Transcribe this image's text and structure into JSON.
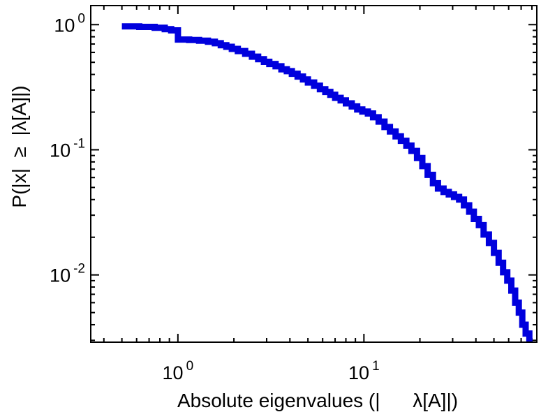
{
  "figure": {
    "background": "#ffffff",
    "border_color": "#000000"
  },
  "chart_data": {
    "type": "line",
    "subtype": "step-ccdf",
    "title": "",
    "xlabel": "Absolute eigenvalues (|      λ[A]|)",
    "ylabel": "P(|x|  ≥  |λ[A]|)",
    "x_scale": "log",
    "y_scale": "log",
    "xlim": [
      0.34,
      85
    ],
    "ylim": [
      0.0029,
      1.42
    ],
    "grid": false,
    "legend": null,
    "line_color": "#0000dd",
    "line_width": 9,
    "x_major_ticks": [
      {
        "value": 1,
        "base": "10",
        "exp": "0"
      },
      {
        "value": 10,
        "base": "10",
        "exp": "1"
      }
    ],
    "y_major_ticks": [
      {
        "value": 1,
        "base": "10",
        "exp": "0"
      },
      {
        "value": 0.1,
        "base": "10",
        "exp": "-1"
      },
      {
        "value": 0.01,
        "base": "10",
        "exp": "-2"
      }
    ],
    "points": [
      [
        0.5,
        0.97
      ],
      [
        0.62,
        0.96
      ],
      [
        0.75,
        0.945
      ],
      [
        0.85,
        0.92
      ],
      [
        0.92,
        0.9
      ],
      [
        1.0,
        0.76
      ],
      [
        1.15,
        0.755
      ],
      [
        1.3,
        0.745
      ],
      [
        1.45,
        0.73
      ],
      [
        1.58,
        0.71
      ],
      [
        1.7,
        0.685
      ],
      [
        1.82,
        0.665
      ],
      [
        1.95,
        0.64
      ],
      [
        2.1,
        0.615
      ],
      [
        2.3,
        0.585
      ],
      [
        2.5,
        0.555
      ],
      [
        2.7,
        0.53
      ],
      [
        2.9,
        0.505
      ],
      [
        3.1,
        0.485
      ],
      [
        3.35,
        0.465
      ],
      [
        3.6,
        0.44
      ],
      [
        3.85,
        0.425
      ],
      [
        4.1,
        0.405
      ],
      [
        4.4,
        0.385
      ],
      [
        4.7,
        0.365
      ],
      [
        5.0,
        0.345
      ],
      [
        5.4,
        0.325
      ],
      [
        5.8,
        0.305
      ],
      [
        6.2,
        0.29
      ],
      [
        6.6,
        0.275
      ],
      [
        7.0,
        0.26
      ],
      [
        7.5,
        0.248
      ],
      [
        8.0,
        0.235
      ],
      [
        8.6,
        0.222
      ],
      [
        9.2,
        0.21
      ],
      [
        9.8,
        0.202
      ],
      [
        10.5,
        0.195
      ],
      [
        11.2,
        0.182
      ],
      [
        12.0,
        0.168
      ],
      [
        12.9,
        0.152
      ],
      [
        13.8,
        0.14
      ],
      [
        14.8,
        0.128
      ],
      [
        15.8,
        0.118
      ],
      [
        16.9,
        0.108
      ],
      [
        18.0,
        0.098
      ],
      [
        19.3,
        0.086
      ],
      [
        20.6,
        0.074
      ],
      [
        22.0,
        0.063
      ],
      [
        23.5,
        0.054
      ],
      [
        25.0,
        0.049
      ],
      [
        26.8,
        0.046
      ],
      [
        28.6,
        0.044
      ],
      [
        30.5,
        0.042
      ],
      [
        32.5,
        0.04
      ],
      [
        34.5,
        0.036
      ],
      [
        36.8,
        0.032
      ],
      [
        39.0,
        0.028
      ],
      [
        41.5,
        0.025
      ],
      [
        44.0,
        0.021
      ],
      [
        47.0,
        0.018
      ],
      [
        50.0,
        0.015
      ],
      [
        53.0,
        0.0125
      ],
      [
        56.0,
        0.0105
      ],
      [
        59.0,
        0.009
      ],
      [
        62.0,
        0.0075
      ],
      [
        65.0,
        0.006
      ],
      [
        68.0,
        0.005
      ],
      [
        71.0,
        0.004
      ],
      [
        74.0,
        0.0034
      ],
      [
        77.5,
        0.003
      ]
    ]
  }
}
